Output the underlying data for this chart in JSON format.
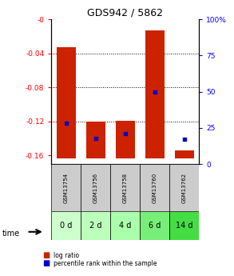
{
  "title": "GDS942 / 5862",
  "categories": [
    "GSM13754",
    "GSM13756",
    "GSM13758",
    "GSM13760",
    "GSM13762"
  ],
  "time_labels": [
    "0 d",
    "2 d",
    "4 d",
    "6 d",
    "14 d"
  ],
  "log_ratio_top": [
    -0.033,
    -0.12,
    -0.119,
    -0.013,
    -0.154
  ],
  "log_ratio_bottom": [
    -0.163,
    -0.163,
    -0.163,
    -0.163,
    -0.163
  ],
  "percentile_values": [
    0.28,
    0.18,
    0.21,
    0.5,
    0.17
  ],
  "ylim_left": [
    -0.17,
    0.0
  ],
  "ylim_right": [
    0,
    100
  ],
  "yticks_left": [
    0,
    -0.04,
    -0.08,
    -0.12,
    -0.16
  ],
  "ytick_labels_left": [
    "-0",
    "-0.04",
    "-0.08",
    "-0.12",
    "-0.16"
  ],
  "yticks_right": [
    0,
    25,
    50,
    75,
    100
  ],
  "ytick_labels_right": [
    "0",
    "25",
    "50",
    "75",
    "100%"
  ],
  "bar_color": "#cc2200",
  "dot_color": "#0000cc",
  "bg_color": "#ffffff",
  "sample_bg": "#cccccc",
  "green_colors": [
    "#ccffcc",
    "#bbffbb",
    "#aaffaa",
    "#77ee77",
    "#44dd44"
  ],
  "bar_width": 0.65,
  "legend_red_label": "log ratio",
  "legend_blue_label": "percentile rank within the sample"
}
